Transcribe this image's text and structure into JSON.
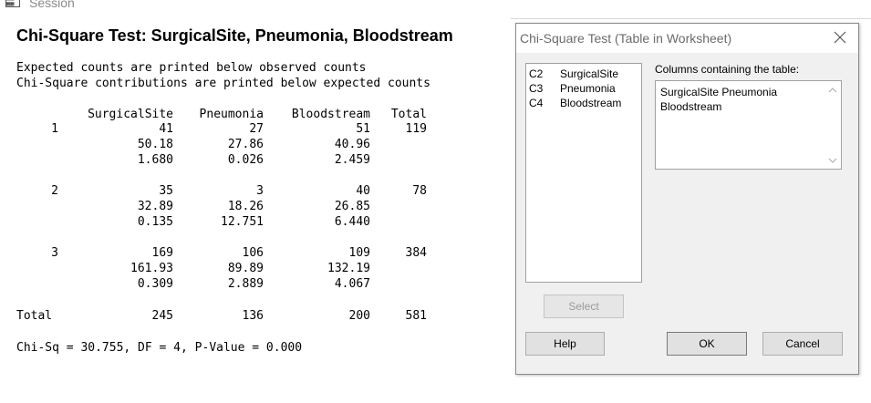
{
  "session": {
    "title": "Session"
  },
  "output": {
    "heading": "Chi-Square Test: SurgicalSite, Pneumonia, Bloodstream",
    "note1": "Expected counts are printed below observed counts",
    "note2": "Chi-Square contributions are printed below expected counts",
    "columns": [
      "SurgicalSite",
      "Pneumonia",
      "Bloodstream",
      "Total"
    ],
    "rows": [
      {
        "label": "1",
        "observed": [
          "41",
          "27",
          "51"
        ],
        "total": "119",
        "expected": [
          "50.18",
          "27.86",
          "40.96"
        ],
        "contrib": [
          "1.680",
          "0.026",
          "2.459"
        ]
      },
      {
        "label": "2",
        "observed": [
          "35",
          "3",
          "40"
        ],
        "total": "78",
        "expected": [
          "32.89",
          "18.26",
          "26.85"
        ],
        "contrib": [
          "0.135",
          "12.751",
          "6.440"
        ]
      },
      {
        "label": "3",
        "observed": [
          "169",
          "106",
          "109"
        ],
        "total": "384",
        "expected": [
          "161.93",
          "89.89",
          "132.19"
        ],
        "contrib": [
          "0.309",
          "2.889",
          "4.067"
        ]
      }
    ],
    "total_row": {
      "label": "Total",
      "values": [
        "245",
        "136",
        "200",
        "581"
      ]
    },
    "chisq_line": "Chi-Sq = 30.755, DF = 4, P-Value = 0.000"
  },
  "dialog": {
    "title": "Chi-Square Test (Table in Worksheet)",
    "variables": [
      {
        "id": "C2",
        "name": "SurgicalSite"
      },
      {
        "id": "C3",
        "name": "Pneumonia"
      },
      {
        "id": "C4",
        "name": "Bloodstream"
      }
    ],
    "columns_label": "Columns containing the table:",
    "columns_value": "SurgicalSite Pneumonia Bloodstream",
    "select_label": "Select",
    "help_label": "Help",
    "ok_label": "OK",
    "cancel_label": "Cancel"
  }
}
